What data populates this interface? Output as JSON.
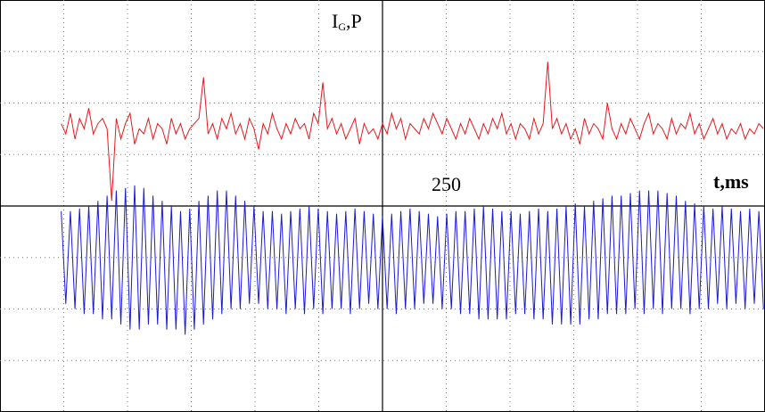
{
  "chart_data": {
    "type": "line",
    "y_label": [
      "I",
      "G",
      ",P"
    ],
    "x_label": "t,ms",
    "xlim": [
      0,
      500
    ],
    "ylim": [
      -4,
      4
    ],
    "xticks": [
      250
    ],
    "grid": true,
    "x": [
      40,
      43,
      46,
      49,
      52,
      55,
      58,
      61,
      64,
      67,
      70,
      73,
      76,
      79,
      82,
      85,
      88,
      91,
      94,
      97,
      100,
      103,
      106,
      109,
      112,
      115,
      118,
      121,
      124,
      127,
      130,
      133,
      136,
      139,
      142,
      145,
      148,
      151,
      154,
      157,
      160,
      163,
      166,
      169,
      172,
      175,
      178,
      181,
      184,
      187,
      190,
      193,
      196,
      199,
      202,
      205,
      208,
      211,
      214,
      217,
      220,
      223,
      226,
      229,
      232,
      235,
      238,
      241,
      244,
      247,
      250,
      253,
      256,
      259,
      262,
      265,
      268,
      271,
      274,
      277,
      280,
      283,
      286,
      289,
      292,
      295,
      298,
      301,
      304,
      307,
      310,
      313,
      316,
      319,
      322,
      325,
      328,
      331,
      334,
      337,
      340,
      343,
      346,
      349,
      352,
      355,
      358,
      361,
      364,
      367,
      370,
      373,
      376,
      379,
      382,
      385,
      388,
      391,
      394,
      397,
      400,
      403,
      406,
      409,
      412,
      415,
      418,
      421,
      424,
      427,
      430,
      433,
      436,
      439,
      442,
      445,
      448,
      451,
      454,
      457,
      460,
      463,
      466,
      469,
      472,
      475,
      478,
      481,
      484,
      487,
      490,
      493,
      496,
      499
    ],
    "series": [
      {
        "color": "#e41a1c",
        "values": [
          1.6,
          1.4,
          1.8,
          1.3,
          1.7,
          1.5,
          1.9,
          1.4,
          1.6,
          1.7,
          1.5,
          0.1,
          1.7,
          1.3,
          1.6,
          1.8,
          1.2,
          1.5,
          1.4,
          1.7,
          1.3,
          1.6,
          1.5,
          1.2,
          1.7,
          1.4,
          1.6,
          1.3,
          1.5,
          1.6,
          1.7,
          2.5,
          1.4,
          1.6,
          1.3,
          1.7,
          1.5,
          1.8,
          1.4,
          1.6,
          1.3,
          1.7,
          1.5,
          1.1,
          1.6,
          1.4,
          1.8,
          1.5,
          1.3,
          1.6,
          1.4,
          1.7,
          1.5,
          1.6,
          1.3,
          1.8,
          1.6,
          2.4,
          1.5,
          1.7,
          1.4,
          1.6,
          1.3,
          1.5,
          1.7,
          1.2,
          1.6,
          1.4,
          1.5,
          1.3,
          1.6,
          1.4,
          1.8,
          1.5,
          1.7,
          1.3,
          1.6,
          1.5,
          1.4,
          1.7,
          1.5,
          1.8,
          1.6,
          1.4,
          1.7,
          1.5,
          1.3,
          1.6,
          1.4,
          1.7,
          1.5,
          1.3,
          1.6,
          1.4,
          1.7,
          1.5,
          1.8,
          1.4,
          1.6,
          1.3,
          1.6,
          1.5,
          1.3,
          1.7,
          1.4,
          1.6,
          2.8,
          1.5,
          1.7,
          1.4,
          1.6,
          1.3,
          1.5,
          1.2,
          1.7,
          1.4,
          1.6,
          1.5,
          1.3,
          2.0,
          1.5,
          1.3,
          1.6,
          1.4,
          1.7,
          1.5,
          1.3,
          1.6,
          1.8,
          1.4,
          1.6,
          1.5,
          1.3,
          1.7,
          1.4,
          1.6,
          1.5,
          1.8,
          1.4,
          1.6,
          1.3,
          1.5,
          1.7,
          1.4,
          1.6,
          1.3,
          1.5,
          1.4,
          1.6,
          1.3,
          1.5,
          1.4,
          1.6,
          1.5
        ]
      },
      {
        "color": "#1a1ad6",
        "values": [
          -0.1,
          -1.9,
          -0.1,
          -2.0,
          -0.05,
          -2.1,
          0.0,
          -2.1,
          0.1,
          -2.2,
          0.2,
          -2.2,
          0.3,
          -2.3,
          0.35,
          -2.4,
          0.4,
          -2.4,
          0.35,
          -2.3,
          0.2,
          -2.3,
          0.1,
          -2.4,
          0.0,
          -2.4,
          -0.1,
          -2.5,
          -0.05,
          -2.4,
          0.1,
          -2.3,
          0.2,
          -2.2,
          0.3,
          -2.1,
          0.3,
          -2.0,
          0.2,
          -2.0,
          0.1,
          -1.9,
          0.0,
          -1.9,
          -0.1,
          -2.0,
          -0.1,
          -2.0,
          -0.15,
          -2.1,
          -0.1,
          -2.0,
          -0.05,
          -2.1,
          0.0,
          -2.0,
          -0.05,
          -2.1,
          -0.1,
          -2.0,
          -0.15,
          -2.0,
          -0.1,
          -2.1,
          -0.05,
          -2.0,
          -0.1,
          -1.9,
          -0.15,
          -2.0,
          -0.2,
          -2.0,
          -0.15,
          -2.1,
          -0.1,
          -2.0,
          -0.05,
          -2.0,
          -0.1,
          -1.9,
          -0.15,
          -1.9,
          -0.2,
          -2.0,
          -0.15,
          -2.0,
          -0.1,
          -2.1,
          -0.1,
          -2.1,
          -0.05,
          -2.2,
          0.0,
          -2.2,
          -0.05,
          -2.2,
          -0.1,
          -2.2,
          -0.1,
          -2.1,
          -0.15,
          -2.1,
          -0.1,
          -2.2,
          -0.05,
          -2.2,
          -0.1,
          -2.3,
          -0.05,
          -2.3,
          0.0,
          -2.3,
          0.05,
          -2.3,
          0.0,
          -2.2,
          0.1,
          -2.2,
          0.15,
          -2.1,
          0.2,
          -2.1,
          0.2,
          -2.1,
          0.25,
          -2.0,
          0.3,
          -2.1,
          0.3,
          -2.0,
          0.3,
          -2.1,
          0.25,
          -2.0,
          0.2,
          -2.0,
          0.1,
          -2.1,
          0.05,
          -2.0,
          0.0,
          -2.0,
          -0.05,
          -1.9,
          0.0,
          -2.0,
          -0.05,
          -1.9,
          -0.1,
          -2.0,
          -0.05,
          -1.9,
          -0.1,
          -2.0
        ]
      }
    ]
  }
}
